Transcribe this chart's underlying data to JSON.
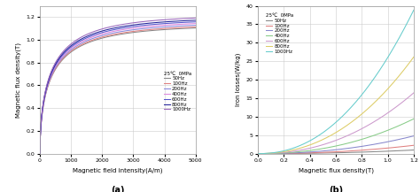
{
  "plot_a": {
    "xlabel": "Magnetic field intensity(A/m)",
    "ylabel": "Magnetic flux density(T)",
    "xlim": [
      0,
      5000
    ],
    "ylim": [
      0.0,
      1.3
    ],
    "yticks": [
      0.0,
      0.2,
      0.4,
      0.6,
      0.8,
      1.0,
      1.2
    ],
    "xticks": [
      0,
      1000,
      2000,
      3000,
      4000,
      5000
    ],
    "label": "(a)",
    "annotation": "25℃  0MPa",
    "frequencies": [
      "50Hz",
      "100Hz",
      "200Hz",
      "400Hz",
      "600Hz",
      "800Hz",
      "1000Hz"
    ],
    "colors": [
      "#888888",
      "#e08080",
      "#8888dd",
      "#dd88dd",
      "#5555cc",
      "#222299",
      "#9966bb"
    ],
    "Bsat": [
      1.13,
      1.14,
      1.155,
      1.17,
      1.185,
      1.2,
      1.22
    ],
    "k_sharp": [
      0.035,
      0.035,
      0.035,
      0.035,
      0.035,
      0.035,
      0.035
    ]
  },
  "plot_b": {
    "xlabel": "Magnetic flux density(T)",
    "ylabel": "Iron losses(W/kg)",
    "xlim": [
      0.0,
      1.2
    ],
    "ylim": [
      0,
      40
    ],
    "yticks": [
      0,
      5,
      10,
      15,
      20,
      25,
      30,
      35,
      40
    ],
    "xticks": [
      0.0,
      0.2,
      0.4,
      0.6,
      0.8,
      1.0,
      1.2
    ],
    "label": "(b)",
    "annotation": "25℃  0MPa",
    "frequencies": [
      "50Hz",
      "100Hz",
      "200Hz",
      "400Hz",
      "600Hz",
      "800Hz",
      "1000Hz"
    ],
    "colors": [
      "#888888",
      "#e08080",
      "#8888cc",
      "#88cc88",
      "#cc99cc",
      "#ddcc66",
      "#66cccc"
    ],
    "loss_k": [
      0.65,
      1.5,
      3.2,
      6.3,
      11.0,
      17.5,
      26.0
    ],
    "loss_beta": [
      2.2,
      2.2,
      2.2,
      2.2,
      2.2,
      2.2,
      2.2
    ]
  }
}
